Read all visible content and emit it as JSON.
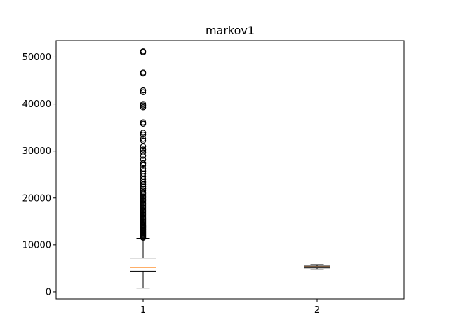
{
  "chart_data": {
    "type": "box",
    "title": "markov1",
    "xlabel": "",
    "ylabel": "",
    "categories": [
      "1",
      "2"
    ],
    "ylim": [
      -1500,
      53500
    ],
    "yticks": [
      0,
      10000,
      20000,
      30000,
      40000,
      50000
    ],
    "ytick_labels": [
      "0",
      "10000",
      "20000",
      "30000",
      "40000",
      "50000"
    ],
    "grid": false,
    "colors": {
      "box": "#000000",
      "median": "#ff7f0e",
      "flier": "#000000"
    },
    "boxes": [
      {
        "name": "1",
        "whisker_low": 800,
        "q1": 4400,
        "median": 5200,
        "q3": 7200,
        "whisker_high": 11400,
        "fliers": [
          11500,
          11700,
          11900,
          12100,
          12300,
          12500,
          12700,
          12900,
          13100,
          13300,
          13500,
          13700,
          13900,
          14100,
          14300,
          14600,
          14900,
          15200,
          15500,
          15800,
          16100,
          16400,
          16700,
          17000,
          17300,
          17600,
          17900,
          18200,
          18500,
          18800,
          19100,
          19400,
          19700,
          20000,
          20300,
          20600,
          20900,
          21200,
          21600,
          22000,
          22400,
          22900,
          23400,
          24000,
          24600,
          25200,
          25700,
          26200,
          27000,
          27400,
          28200,
          29000,
          29700,
          30300,
          31000,
          32200,
          32600,
          33500,
          33900,
          35800,
          36100,
          39300,
          39700,
          40000,
          42500,
          42900,
          46500,
          46700,
          51000,
          51200
        ]
      },
      {
        "name": "2",
        "whisker_low": 4800,
        "q1": 5100,
        "median": 5300,
        "q3": 5500,
        "whisker_high": 5800,
        "fliers": []
      }
    ]
  }
}
